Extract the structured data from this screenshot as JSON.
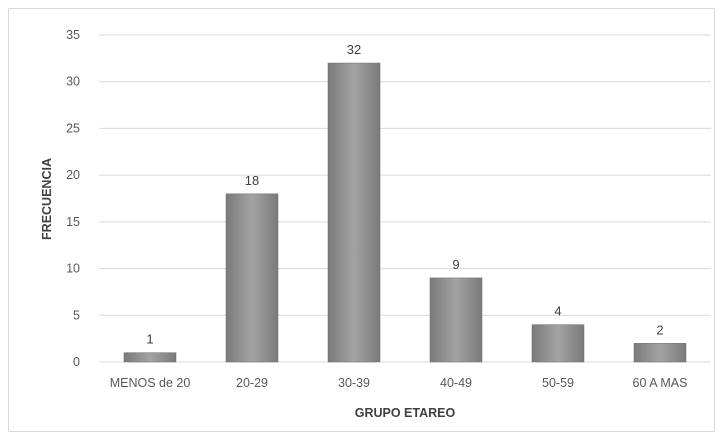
{
  "chart_data": {
    "type": "bar",
    "title": "",
    "xlabel": "GRUPO ETAREO",
    "ylabel": "FRECUENCIA",
    "categories": [
      "MENOS de 20",
      "20-29",
      "30-39",
      "40-49",
      "50-59",
      "60 A MAS"
    ],
    "values": [
      1,
      18,
      32,
      9,
      4,
      2
    ],
    "data_labels": [
      "1",
      "18",
      "32",
      "9",
      "4",
      "2"
    ],
    "ylim": [
      0,
      35
    ],
    "yticks": [
      0,
      5,
      10,
      15,
      20,
      25,
      30,
      35
    ],
    "ytick_labels": [
      "0",
      "5",
      "10",
      "15",
      "20",
      "25",
      "30",
      "35"
    ],
    "grid": true,
    "legend": "none",
    "bar_color": "#8c8c8c"
  }
}
